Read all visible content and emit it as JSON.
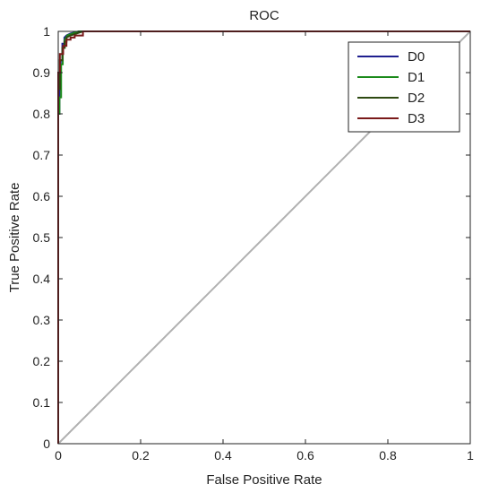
{
  "chart_data": {
    "type": "line",
    "title": "ROC",
    "xlabel": "False Positive Rate",
    "ylabel": "True Positive Rate",
    "xlim": [
      0,
      1
    ],
    "ylim": [
      0,
      1
    ],
    "x_ticks": [
      0,
      0.2,
      0.4,
      0.6,
      0.8,
      1
    ],
    "x_tick_labels": [
      "0",
      "0.2",
      "0.4",
      "0.6",
      "0.8",
      "1"
    ],
    "y_ticks": [
      0,
      0.1,
      0.2,
      0.3,
      0.4,
      0.5,
      0.6,
      0.7,
      0.8,
      0.9,
      1
    ],
    "y_tick_labels": [
      "0",
      "0.1",
      "0.2",
      "0.3",
      "0.4",
      "0.5",
      "0.6",
      "0.7",
      "0.8",
      "0.9",
      "1"
    ],
    "grid": false,
    "legend_position": "top-right",
    "reference_line": {
      "x": [
        0,
        1
      ],
      "y": [
        0,
        1
      ],
      "color": "#b0b0b0"
    },
    "series": [
      {
        "name": "D0",
        "color": "#1f1f8f",
        "x": [
          0,
          0,
          0.003,
          0.003,
          0.006,
          0.006,
          0.01,
          0.01,
          0.015,
          0.015,
          0.02,
          0.03,
          0.05,
          1
        ],
        "y": [
          0,
          0.8,
          0.8,
          0.86,
          0.86,
          0.93,
          0.93,
          0.97,
          0.97,
          0.985,
          0.99,
          0.995,
          1,
          1
        ]
      },
      {
        "name": "D1",
        "color": "#1a8a1a",
        "x": [
          0,
          0,
          0.003,
          0.003,
          0.007,
          0.007,
          0.011,
          0.011,
          0.016,
          0.016,
          0.022,
          0.035,
          0.05,
          1
        ],
        "y": [
          0,
          0.8,
          0.8,
          0.84,
          0.84,
          0.92,
          0.92,
          0.96,
          0.96,
          0.98,
          0.99,
          0.995,
          1,
          1
        ]
      },
      {
        "name": "D2",
        "color": "#2e4a12",
        "x": [
          0,
          0,
          0.004,
          0.004,
          0.01,
          0.01,
          0.015,
          0.015,
          0.02,
          0.02,
          0.03,
          0.045,
          0.06,
          1
        ],
        "y": [
          0,
          0.86,
          0.86,
          0.93,
          0.93,
          0.96,
          0.96,
          0.975,
          0.975,
          0.985,
          0.99,
          0.995,
          1,
          1
        ]
      },
      {
        "name": "D3",
        "color": "#7a1a1a",
        "x": [
          0,
          0,
          0.004,
          0.004,
          0.012,
          0.012,
          0.02,
          0.02,
          0.03,
          0.03,
          0.04,
          0.04,
          0.06,
          0.06,
          1
        ],
        "y": [
          0,
          0.9,
          0.9,
          0.945,
          0.945,
          0.965,
          0.965,
          0.98,
          0.98,
          0.985,
          0.985,
          0.99,
          0.99,
          1,
          1
        ]
      }
    ]
  }
}
